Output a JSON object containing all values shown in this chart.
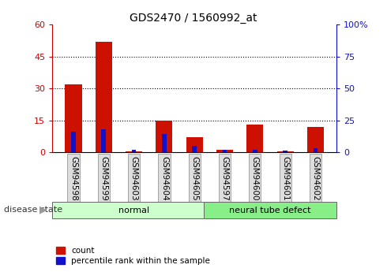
{
  "title": "GDS2470 / 1560992_at",
  "samples": [
    "GSM94598",
    "GSM94599",
    "GSM94603",
    "GSM94604",
    "GSM94605",
    "GSM94597",
    "GSM94600",
    "GSM94601",
    "GSM94602"
  ],
  "count_values": [
    32,
    52,
    0.3,
    15,
    7,
    1,
    13,
    0.3,
    12
  ],
  "percentile_values": [
    16,
    18,
    2,
    14,
    5,
    2,
    2,
    1.5,
    3
  ],
  "groups": [
    {
      "label": "normal",
      "span": [
        0,
        5
      ],
      "color": "#ccffcc"
    },
    {
      "label": "neural tube defect",
      "span": [
        5,
        9
      ],
      "color": "#88ee88"
    }
  ],
  "left_yticks": [
    0,
    15,
    30,
    45,
    60
  ],
  "right_yticks": [
    0,
    25,
    50,
    75,
    100
  ],
  "right_yticklabels": [
    "0",
    "25",
    "50",
    "75",
    "100%"
  ],
  "left_color": "#cc0000",
  "right_color": "#1111cc",
  "bar_color_count": "#cc1100",
  "bar_color_pct": "#1111cc",
  "red_bar_width": 0.55,
  "blue_bar_width": 0.15,
  "ylim_left": [
    0,
    60
  ],
  "ylim_right": [
    0,
    100
  ],
  "legend_labels": [
    "count",
    "percentile rank within the sample"
  ],
  "disease_state_label": "disease state"
}
